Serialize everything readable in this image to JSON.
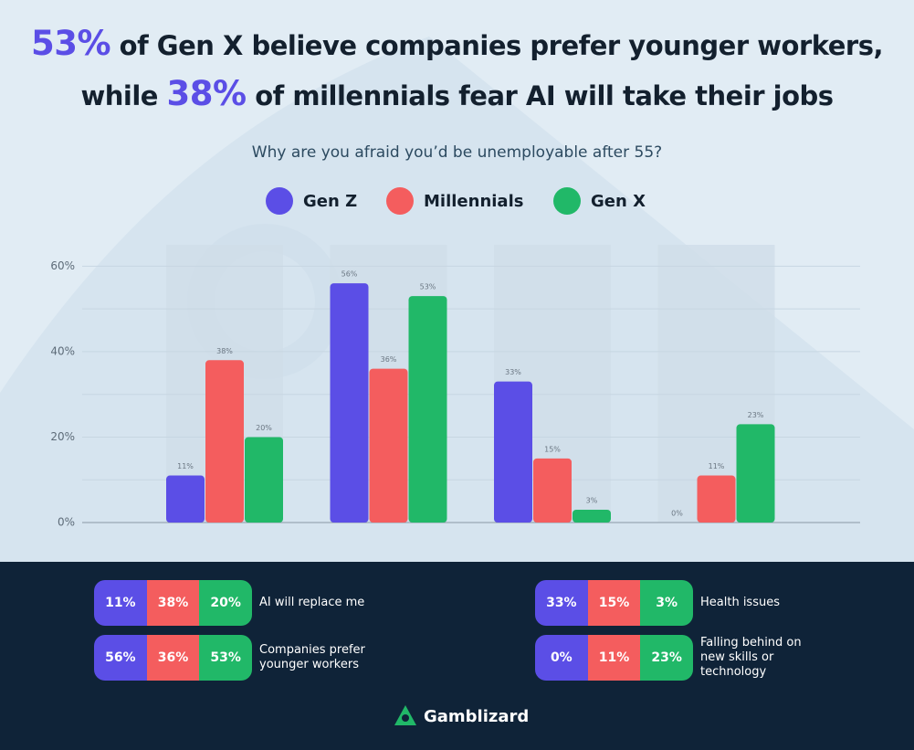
{
  "chart_data": {
    "type": "bar",
    "title": [
      [
        "53%",
        "of Gen X believe companies prefer younger workers,"
      ],
      [
        "while",
        "38%",
        "of millennials fear AI will take their jobs"
      ]
    ],
    "subtitle": "Why are you afraid you’d be unemployable after 55?",
    "categories": [
      "AI will replace me",
      "Companies prefer younger workers",
      "Health issues",
      "Falling behind on new skills or technology"
    ],
    "series": [
      {
        "name": "Gen Z",
        "color": "#5b4ee6",
        "values": [
          11,
          56,
          33,
          0
        ],
        "value_labels": [
          "11%",
          "56%",
          "33%",
          "0%"
        ]
      },
      {
        "name": "Millennials",
        "color": "#f45d5e",
        "values": [
          38,
          36,
          15,
          11
        ],
        "value_labels": [
          "38%",
          "36%",
          "15%",
          "11%"
        ]
      },
      {
        "name": "Gen X",
        "color": "#21b868",
        "values": [
          20,
          53,
          3,
          23
        ],
        "value_labels": [
          "20%",
          "53%",
          "3%",
          "23%"
        ]
      }
    ],
    "ylim": [
      0,
      65
    ],
    "yticks": [
      {
        "value": 0,
        "label": "0%"
      },
      {
        "value": 20,
        "label": "20%"
      },
      {
        "value": 40,
        "label": "40%"
      },
      {
        "value": 60,
        "label": "60%"
      }
    ],
    "minor_yticks": [
      10,
      30,
      50
    ],
    "grid": true,
    "legend": "top",
    "brand": "Gamblizard"
  }
}
